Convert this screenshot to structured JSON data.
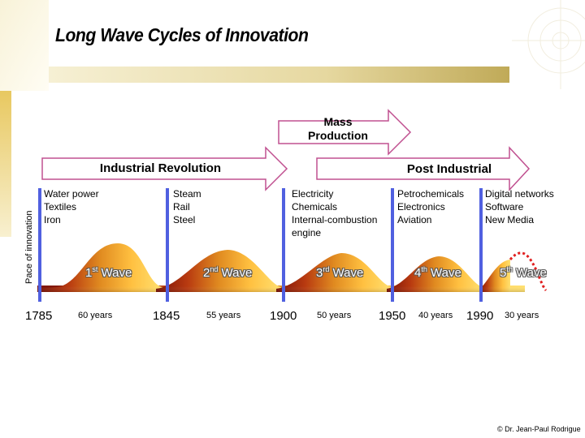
{
  "title": "Long Wave Cycles of Innovation",
  "y_axis_label": "Pace of innovation",
  "eras": {
    "mass_production": "Mass\nProduction",
    "industrial_revolution": "Industrial Revolution",
    "post_industrial": "Post Industrial"
  },
  "waves": [
    {
      "number": "1",
      "suffix": "st",
      "label": "Wave",
      "start_year": "1785",
      "duration": "60 years",
      "innovations": [
        "Water power",
        "Textiles",
        "Iron"
      ]
    },
    {
      "number": "2",
      "suffix": "nd",
      "label": "Wave",
      "start_year": "1845",
      "duration": "55 years",
      "innovations": [
        "Steam",
        "Rail",
        "Steel"
      ]
    },
    {
      "number": "3",
      "suffix": "rd",
      "label": "Wave",
      "start_year": "1900",
      "duration": "50 years",
      "innovations": [
        "Electricity",
        "Chemicals",
        "Internal-combustion",
        "engine"
      ]
    },
    {
      "number": "4",
      "suffix": "th",
      "label": "Wave",
      "start_year": "1950",
      "duration": "40 years",
      "innovations": [
        "Petrochemicals",
        "Electronics",
        "Aviation"
      ]
    },
    {
      "number": "5",
      "suffix": "th",
      "label": "Wave",
      "start_year": "1990",
      "duration": "30 years",
      "innovations": [
        "Digital networks",
        "Software",
        "New Media"
      ]
    }
  ],
  "credit": "© Dr. Jean-Paul Rodrigue",
  "colors": {
    "header_band_start": "#f3ecc8",
    "header_band_end": "#c3ad5a",
    "left_bar": "#d8b040",
    "arrow_fill": "#ffffff",
    "arrow_stroke": "#c05090",
    "divider": "#5060e0",
    "wave_dark": "#8a1a10",
    "wave_light": "#ffd050",
    "dotted": "#e02020"
  }
}
